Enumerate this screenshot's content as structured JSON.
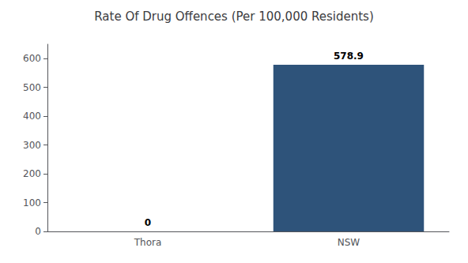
{
  "chart_data": {
    "type": "bar",
    "title": "Rate Of Drug Offences (Per 100,000 Residents)",
    "categories": [
      "Thora",
      "NSW"
    ],
    "values": [
      0,
      578.9
    ],
    "color": "#2e537a",
    "ylim": [
      0,
      650
    ],
    "yticks": [
      0,
      100,
      200,
      300,
      400,
      500,
      600
    ],
    "grid": false,
    "data_labels": true
  }
}
